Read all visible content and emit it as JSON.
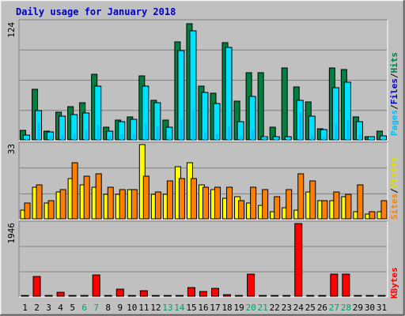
{
  "title": "Daily usage for January 2018",
  "colors": {
    "background": "#c0c0c0",
    "plot_bg": "#c0c0c0",
    "title": "#0000c0",
    "hits": "#008040",
    "files": "#00e0ff",
    "pages": "#00c0ff",
    "sites": "#ff8000",
    "visits": "#ffff00",
    "kbytes": "#ff0000",
    "weekend_label": "#00a060",
    "gridline": "#808080"
  },
  "legend": {
    "top": [
      "Hits",
      "Files",
      "Pages"
    ],
    "middle": [
      "Visits",
      "Sites"
    ],
    "bottom": [
      "KBytes"
    ],
    "separator": "/"
  },
  "chart_data": [
    {
      "type": "bar",
      "panel": "hits-files-pages",
      "ymax_label": "124",
      "ylim": [
        0,
        124
      ],
      "categories": [
        "1",
        "2",
        "3",
        "4",
        "5",
        "6",
        "7",
        "8",
        "9",
        "10",
        "11",
        "12",
        "13",
        "14",
        "15",
        "16",
        "17",
        "18",
        "19",
        "20",
        "21",
        "22",
        "23",
        "24",
        "25",
        "26",
        "27",
        "28",
        "29",
        "30",
        "31"
      ],
      "weekend_days": [
        "6",
        "7",
        "13",
        "14",
        "20",
        "21",
        "27",
        "28"
      ],
      "series": [
        {
          "name": "Hits",
          "values": [
            10,
            53,
            9,
            29,
            35,
            39,
            69,
            13,
            21,
            24,
            67,
            42,
            21,
            103,
            122,
            57,
            49,
            102,
            41,
            71,
            71,
            13,
            76,
            56,
            40,
            12,
            76,
            74,
            24,
            3,
            9
          ]
        },
        {
          "name": "Files",
          "values": [
            5,
            31,
            8,
            25,
            27,
            28,
            57,
            9,
            19,
            22,
            57,
            39,
            13,
            94,
            115,
            50,
            38,
            97,
            19,
            46,
            3,
            3,
            3,
            42,
            25,
            11,
            55,
            61,
            19,
            3,
            4
          ]
        },
        {
          "name": "Pages",
          "values": [
            2,
            18,
            4,
            5,
            7,
            10,
            16,
            4,
            6,
            6,
            17,
            13,
            3,
            22,
            33,
            8,
            6,
            14,
            4,
            10,
            3,
            2,
            1,
            29,
            5,
            3,
            17,
            21,
            6,
            2,
            2
          ]
        }
      ]
    },
    {
      "type": "bar",
      "panel": "visits-sites",
      "ymax_label": "33",
      "ylim": [
        0,
        33
      ],
      "categories": [
        "1",
        "2",
        "3",
        "4",
        "5",
        "6",
        "7",
        "8",
        "9",
        "10",
        "11",
        "12",
        "13",
        "14",
        "15",
        "16",
        "17",
        "18",
        "19",
        "20",
        "21",
        "22",
        "23",
        "24",
        "25",
        "26",
        "27",
        "28",
        "29",
        "30",
        "31"
      ],
      "series": [
        {
          "name": "Visits",
          "values": [
            4,
            14,
            7,
            12,
            18,
            15,
            14,
            11,
            11,
            13,
            33,
            11,
            11,
            23,
            25,
            15,
            13,
            9,
            10,
            7,
            6,
            3,
            5,
            4,
            12,
            8,
            8,
            10,
            3,
            2,
            3
          ]
        },
        {
          "name": "Sites",
          "values": [
            7,
            15,
            8,
            13,
            25,
            19,
            20,
            14,
            13,
            13,
            19,
            12,
            17,
            18,
            18,
            14,
            14,
            14,
            8,
            14,
            13,
            10,
            13,
            20,
            17,
            8,
            12,
            11,
            15,
            3,
            8
          ]
        }
      ]
    },
    {
      "type": "bar",
      "panel": "kbytes",
      "ymax_label": "1946",
      "ylim": [
        0,
        1946
      ],
      "categories": [
        "1",
        "2",
        "3",
        "4",
        "5",
        "6",
        "7",
        "8",
        "9",
        "10",
        "11",
        "12",
        "13",
        "14",
        "15",
        "16",
        "17",
        "18",
        "19",
        "20",
        "21",
        "22",
        "23",
        "24",
        "25",
        "26",
        "27",
        "28",
        "29",
        "30",
        "31"
      ],
      "series": [
        {
          "name": "KBytes",
          "values": [
            20,
            530,
            20,
            110,
            20,
            20,
            570,
            20,
            190,
            20,
            140,
            20,
            20,
            20,
            230,
            130,
            210,
            40,
            20,
            590,
            20,
            20,
            20,
            1946,
            20,
            20,
            590,
            590,
            20,
            20,
            20
          ]
        }
      ]
    }
  ]
}
